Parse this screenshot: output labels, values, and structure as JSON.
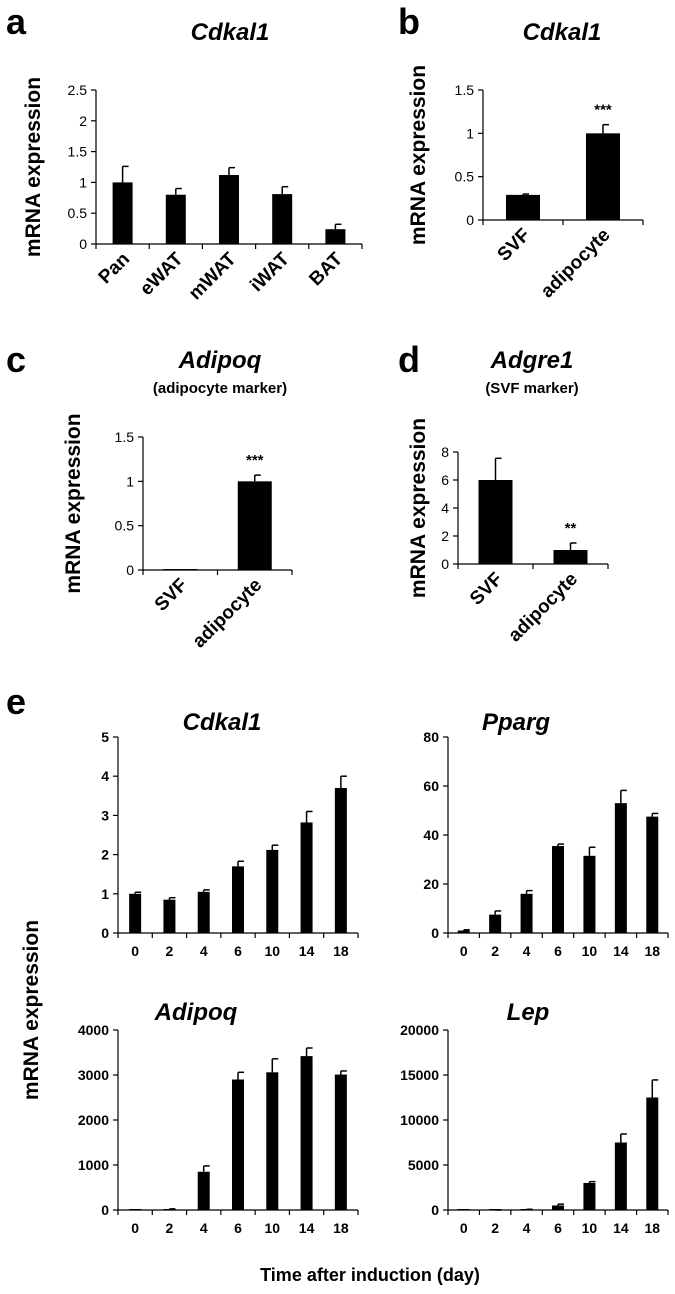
{
  "panels": {
    "a": "a",
    "b": "b",
    "c": "c",
    "d": "d",
    "e": "e"
  },
  "common": {
    "ylabel": "mRNA expression",
    "e_xlabel": "Time after induction (day)"
  },
  "chart_data": [
    {
      "id": "a",
      "type": "bar",
      "title": "Cdkal1",
      "subtitle": "",
      "xlabel": "",
      "ylabel": "mRNA expression",
      "categories": [
        "Pan",
        "eWAT",
        "mWAT",
        "iWAT",
        "BAT"
      ],
      "values": [
        1.0,
        0.8,
        1.12,
        0.81,
        0.24
      ],
      "errors": [
        0.26,
        0.1,
        0.12,
        0.12,
        0.08
      ],
      "significance": [
        "",
        "",
        "",
        "",
        ""
      ],
      "ylim": [
        0,
        2.5
      ],
      "yticks": [
        "0",
        "0.5",
        "1",
        "1.5",
        "2",
        "2.5"
      ]
    },
    {
      "id": "b",
      "type": "bar",
      "title": "Cdkal1",
      "subtitle": "",
      "xlabel": "",
      "ylabel": "mRNA expression",
      "categories": [
        "SVF",
        "adipocyte"
      ],
      "values": [
        0.29,
        1.0
      ],
      "errors": [
        0.01,
        0.1
      ],
      "significance": [
        "",
        "***"
      ],
      "ylim": [
        0,
        1.5
      ],
      "yticks": [
        "0",
        "0.5",
        "1",
        "1.5"
      ]
    },
    {
      "id": "c",
      "type": "bar",
      "title": "Adipoq",
      "subtitle": "(adipocyte marker)",
      "xlabel": "",
      "ylabel": "mRNA expression",
      "categories": [
        "SVF",
        "adipocyte"
      ],
      "values": [
        0.005,
        1.0
      ],
      "errors": [
        0.0,
        0.07
      ],
      "significance": [
        "",
        "***"
      ],
      "ylim": [
        0,
        1.5
      ],
      "yticks": [
        "0",
        "0.5",
        "1",
        "1.5"
      ]
    },
    {
      "id": "d",
      "type": "bar",
      "title": "Adgre1",
      "subtitle": "(SVF marker)",
      "xlabel": "",
      "ylabel": "mRNA expression",
      "categories": [
        "SVF",
        "adipocyte"
      ],
      "values": [
        6.0,
        1.0
      ],
      "errors": [
        1.55,
        0.5
      ],
      "significance": [
        "",
        "**"
      ],
      "ylim": [
        0,
        8
      ],
      "yticks": [
        "0",
        "2",
        "4",
        "6",
        "8"
      ]
    },
    {
      "id": "e1",
      "type": "bar",
      "title": "Cdkal1",
      "subtitle": "",
      "xlabel": "Time after induction (day)",
      "ylabel": "mRNA expression",
      "categories": [
        "0",
        "2",
        "4",
        "6",
        "10",
        "14",
        "18"
      ],
      "values": [
        1.0,
        0.85,
        1.05,
        1.7,
        2.12,
        2.82,
        3.7
      ],
      "errors": [
        0.04,
        0.05,
        0.05,
        0.13,
        0.12,
        0.28,
        0.3
      ],
      "significance": [
        "",
        "",
        "",
        "",
        "",
        "",
        ""
      ],
      "ylim": [
        0,
        5
      ],
      "yticks": [
        "0",
        "1",
        "2",
        "3",
        "4",
        "5"
      ]
    },
    {
      "id": "e2",
      "type": "bar",
      "title": "Pparg",
      "subtitle": "",
      "xlabel": "Time after induction (day)",
      "ylabel": "mRNA expression",
      "categories": [
        "0",
        "2",
        "4",
        "6",
        "10",
        "14",
        "18"
      ],
      "values": [
        1.0,
        7.5,
        16.0,
        35.5,
        31.5,
        53.0,
        47.5
      ],
      "errors": [
        0.3,
        1.5,
        1.3,
        0.8,
        3.5,
        5.2,
        1.3
      ],
      "significance": [
        "",
        "",
        "",
        "",
        "",
        "",
        ""
      ],
      "ylim": [
        0,
        80
      ],
      "yticks": [
        "0",
        "20",
        "40",
        "60",
        "80"
      ]
    },
    {
      "id": "e3",
      "type": "bar",
      "title": "Adipoq",
      "subtitle": "",
      "xlabel": "Time after induction (day)",
      "ylabel": "mRNA expression",
      "categories": [
        "0",
        "2",
        "4",
        "6",
        "10",
        "14",
        "18"
      ],
      "values": [
        1,
        20,
        850,
        2900,
        3060,
        3420,
        3010
      ],
      "errors": [
        0,
        5,
        130,
        160,
        300,
        180,
        80
      ],
      "significance": [
        "",
        "",
        "",
        "",
        "",
        "",
        ""
      ],
      "ylim": [
        0,
        4000
      ],
      "yticks": [
        "0",
        "1000",
        "2000",
        "3000",
        "4000"
      ]
    },
    {
      "id": "e4",
      "type": "bar",
      "title": "Lep",
      "subtitle": "",
      "xlabel": "Time after induction (day)",
      "ylabel": "mRNA expression",
      "categories": [
        "0",
        "2",
        "4",
        "6",
        "10",
        "14",
        "18"
      ],
      "values": [
        1,
        5,
        60,
        500,
        3000,
        7500,
        12500
      ],
      "errors": [
        0,
        2,
        20,
        150,
        150,
        950,
        1950
      ],
      "significance": [
        "",
        "",
        "",
        "",
        "",
        "",
        ""
      ],
      "ylim": [
        0,
        20000
      ],
      "yticks": [
        "0",
        "5000",
        "10000",
        "15000",
        "20000"
      ]
    }
  ]
}
